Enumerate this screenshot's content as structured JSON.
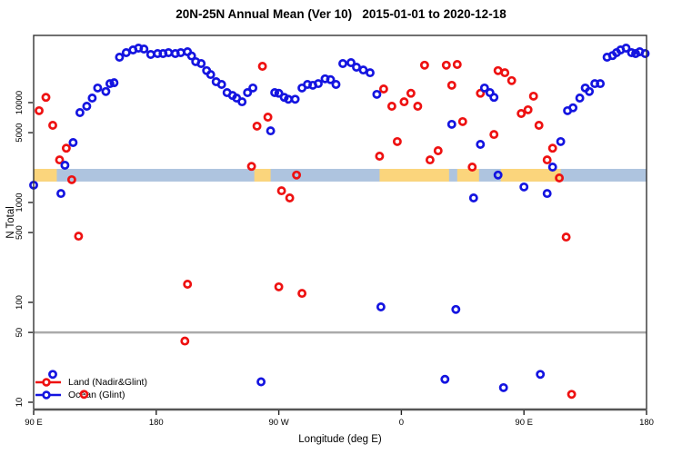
{
  "chart_data": {
    "type": "scatter",
    "title": "20N-25N Annual Mean (Ver 10)   2015-01-01 to 2020-12-18",
    "xlabel": "Longitude (deg E)",
    "ylabel": "N Total",
    "x_axis": {
      "description": "longitude wrapping eastward from 90E, total span 450 degrees",
      "tick_positions_deg": [
        0,
        90,
        180,
        270,
        360,
        450
      ],
      "tick_labels": [
        "90 E",
        "180",
        "90 W",
        "0",
        "90 E",
        "180"
      ],
      "range_deg": [
        0,
        450
      ]
    },
    "y_axis": {
      "scale": "log",
      "tick_values": [
        10000,
        5000,
        1000,
        500,
        100,
        50,
        10
      ],
      "tick_labels": [
        "10000",
        "5000",
        "1000",
        "500",
        "100",
        "50",
        "10"
      ],
      "range": [
        8.5,
        47000
      ]
    },
    "reference_line": {
      "value": 50
    },
    "band": {
      "value_top": 2170,
      "value_bottom": 1620,
      "orange_segments_deg": [
        [
          0,
          17
        ],
        [
          162,
          174
        ],
        [
          254,
          305
        ],
        [
          311,
          327
        ],
        [
          343,
          387
        ]
      ]
    },
    "legend_position": "bottom-left",
    "grid": "off",
    "series": [
      {
        "name": "Land (Nadir&Glint)",
        "color_key": "land",
        "points": [
          [
            4,
            8300
          ],
          [
            9,
            11300
          ],
          [
            14,
            5920
          ],
          [
            19,
            2670
          ],
          [
            24,
            3500
          ],
          [
            28,
            1690
          ],
          [
            33,
            460
          ],
          [
            37,
            12
          ],
          [
            111,
            41
          ],
          [
            113,
            152
          ],
          [
            160,
            2300
          ],
          [
            164,
            5810
          ],
          [
            168,
            23100
          ],
          [
            172,
            7150
          ],
          [
            180,
            143
          ],
          [
            182,
            1310
          ],
          [
            188,
            1110
          ],
          [
            193,
            1880
          ],
          [
            197,
            123
          ],
          [
            254,
            2910
          ],
          [
            257,
            13700
          ],
          [
            263,
            9200
          ],
          [
            267,
            4070
          ],
          [
            272,
            10200
          ],
          [
            277,
            12400
          ],
          [
            282,
            9200
          ],
          [
            287,
            23700
          ],
          [
            291,
            2670
          ],
          [
            297,
            3300
          ],
          [
            303,
            23700
          ],
          [
            307,
            14900
          ],
          [
            311,
            24100
          ],
          [
            315,
            6450
          ],
          [
            322,
            2260
          ],
          [
            328,
            12400
          ],
          [
            338,
            4800
          ],
          [
            341,
            20900
          ],
          [
            346,
            19900
          ],
          [
            351,
            16600
          ],
          [
            358,
            7780
          ],
          [
            363,
            8470
          ],
          [
            367,
            11600
          ],
          [
            371,
            5920
          ],
          [
            377,
            2670
          ],
          [
            381,
            3500
          ],
          [
            386,
            1760
          ],
          [
            391,
            450
          ],
          [
            395,
            12
          ]
        ]
      },
      {
        "name": "Ocean (Glint)",
        "color_key": "ocean",
        "points": [
          [
            0,
            1490
          ],
          [
            14,
            19
          ],
          [
            20,
            1230
          ],
          [
            23,
            2360
          ],
          [
            29,
            3980
          ],
          [
            34,
            7940
          ],
          [
            39,
            9200
          ],
          [
            43,
            11100
          ],
          [
            47,
            14000
          ],
          [
            53,
            12900
          ],
          [
            56,
            15500
          ],
          [
            59,
            15800
          ],
          [
            63,
            28500
          ],
          [
            68,
            31600
          ],
          [
            73,
            33700
          ],
          [
            77,
            35100
          ],
          [
            81,
            34400
          ],
          [
            86,
            30300
          ],
          [
            91,
            31000
          ],
          [
            95,
            31000
          ],
          [
            99,
            31600
          ],
          [
            104,
            31000
          ],
          [
            108,
            31600
          ],
          [
            113,
            32300
          ],
          [
            116,
            29300
          ],
          [
            119,
            25700
          ],
          [
            123,
            24600
          ],
          [
            127,
            20900
          ],
          [
            130,
            19100
          ],
          [
            134,
            16200
          ],
          [
            138,
            15200
          ],
          [
            142,
            12600
          ],
          [
            146,
            11800
          ],
          [
            149,
            11100
          ],
          [
            153,
            10200
          ],
          [
            157,
            12600
          ],
          [
            161,
            14000
          ],
          [
            167,
            16
          ],
          [
            174,
            5220
          ],
          [
            177,
            12600
          ],
          [
            180,
            12400
          ],
          [
            184,
            11300
          ],
          [
            187,
            10800
          ],
          [
            192,
            10800
          ],
          [
            197,
            14000
          ],
          [
            201,
            15200
          ],
          [
            205,
            14900
          ],
          [
            209,
            15500
          ],
          [
            214,
            17300
          ],
          [
            218,
            17000
          ],
          [
            222,
            15200
          ],
          [
            227,
            24600
          ],
          [
            233,
            25100
          ],
          [
            237,
            22600
          ],
          [
            242,
            21200
          ],
          [
            247,
            19900
          ],
          [
            252,
            12100
          ],
          [
            255,
            90
          ],
          [
            302,
            17
          ],
          [
            307,
            6060
          ],
          [
            310,
            85
          ],
          [
            323,
            1110
          ],
          [
            328,
            3820
          ],
          [
            331,
            14000
          ],
          [
            335,
            12600
          ],
          [
            338,
            11300
          ],
          [
            341,
            1880
          ],
          [
            345,
            14
          ],
          [
            360,
            1430
          ],
          [
            372,
            19
          ],
          [
            377,
            1230
          ],
          [
            381,
            2260
          ],
          [
            387,
            4070
          ],
          [
            392,
            8300
          ],
          [
            396,
            8880
          ],
          [
            401,
            11100
          ],
          [
            405,
            14000
          ],
          [
            408,
            12900
          ],
          [
            412,
            15500
          ],
          [
            416,
            15500
          ],
          [
            421,
            28500
          ],
          [
            425,
            29600
          ],
          [
            428,
            31600
          ],
          [
            431,
            33700
          ],
          [
            435,
            35100
          ],
          [
            439,
            31600
          ],
          [
            442,
            31000
          ],
          [
            445,
            32300
          ],
          [
            449,
            31000
          ]
        ]
      }
    ]
  },
  "colors": {
    "land": "#ee1111",
    "ocean": "#1414e0",
    "band_blue": "#aec4df",
    "band_orange": "#fbd57c",
    "ref_line": "#aaaaaa",
    "box": "#333333",
    "tick": "#222222"
  }
}
